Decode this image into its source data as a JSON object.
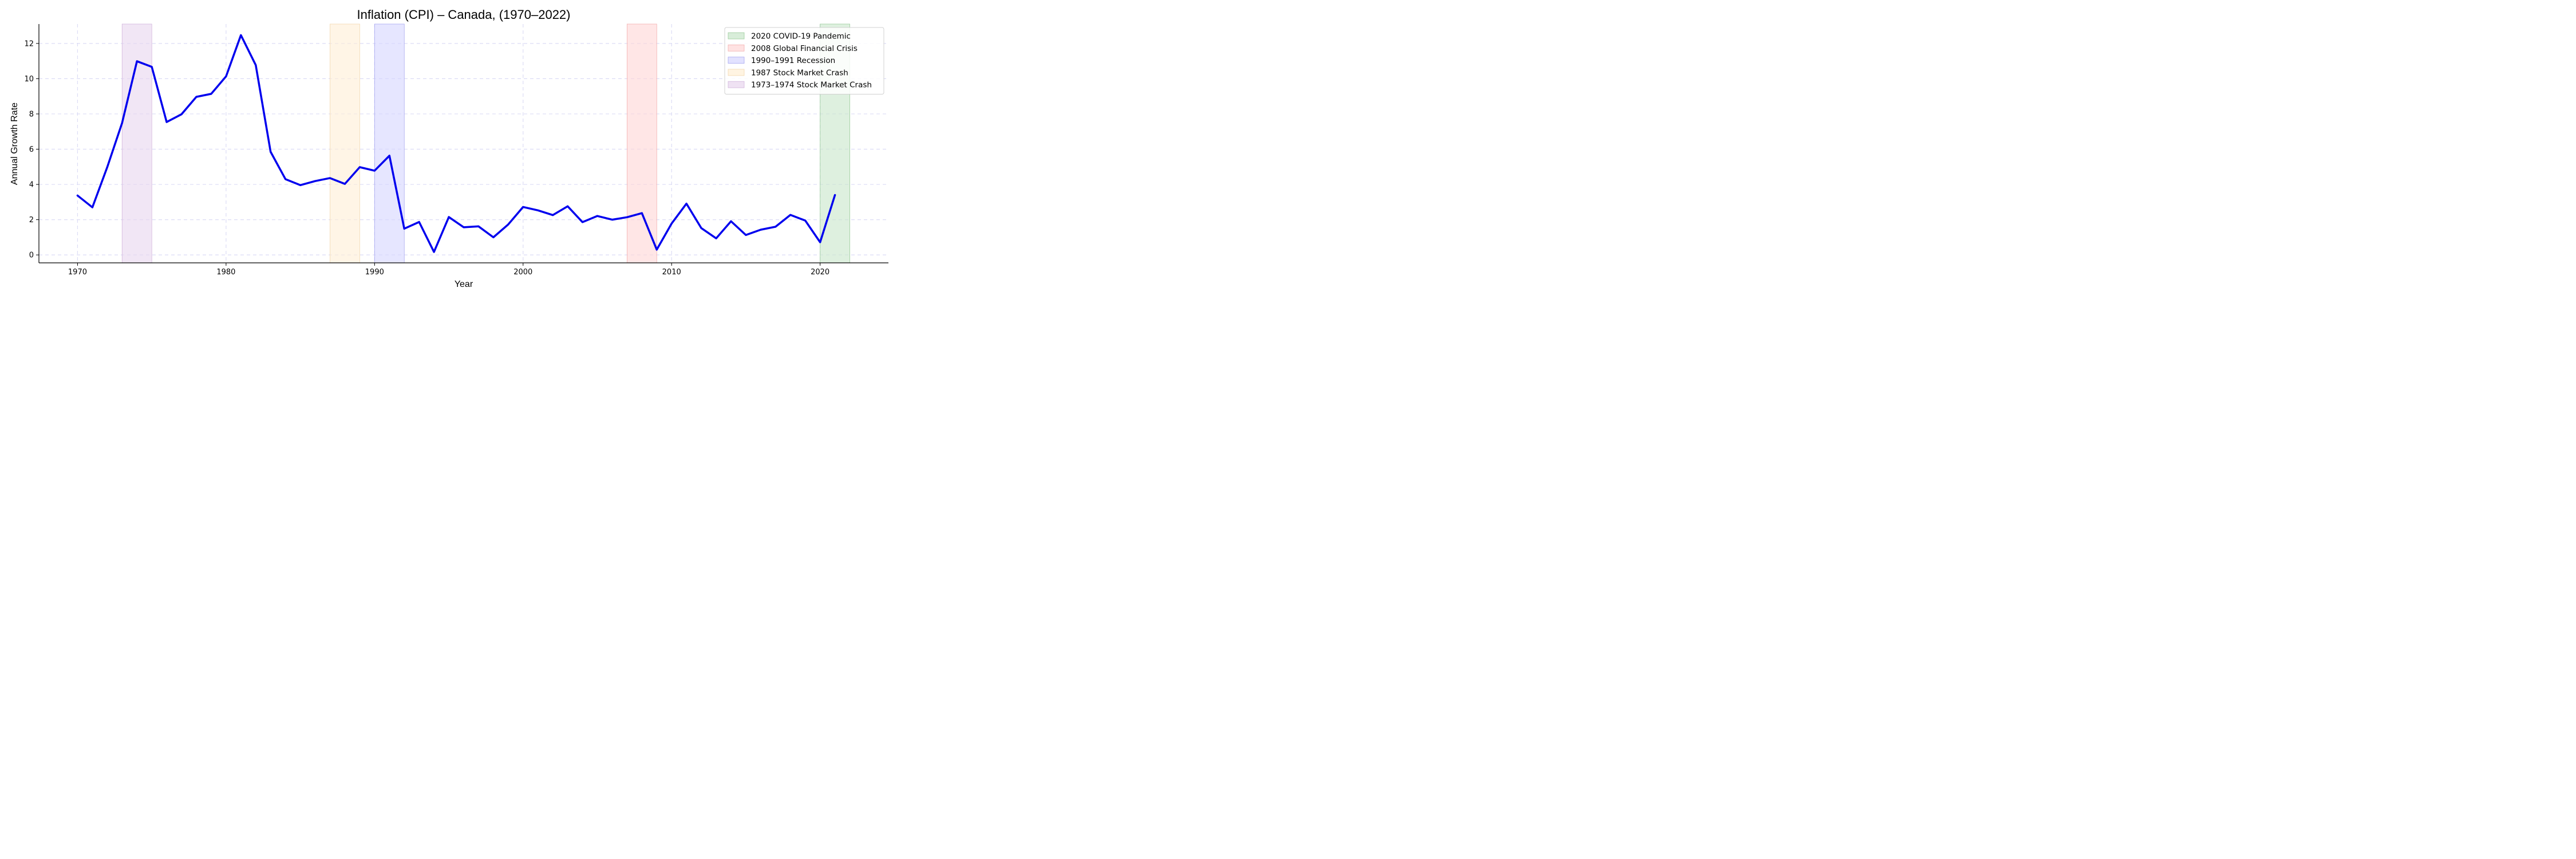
{
  "chart_data": {
    "type": "line",
    "title": "Inflation (CPI) – Canada, (1970–2022)",
    "xlabel": "Year",
    "ylabel": "Annual Growth Rate",
    "xlim": [
      1967.4,
      2024.6
    ],
    "ylim": [
      -0.45,
      13.1
    ],
    "x_ticks": [
      1970,
      1980,
      1990,
      2000,
      2010,
      2020
    ],
    "y_ticks": [
      0,
      2,
      4,
      6,
      8,
      10,
      12
    ],
    "grid": true,
    "legend_position": "top-right",
    "series": [
      {
        "color": "#0000ee",
        "x": [
          1970,
          1971,
          1972,
          1973,
          1974,
          1975,
          1976,
          1977,
          1978,
          1979,
          1980,
          1981,
          1982,
          1983,
          1984,
          1985,
          1986,
          1987,
          1988,
          1989,
          1990,
          1991,
          1992,
          1993,
          1994,
          1995,
          1996,
          1997,
          1998,
          1999,
          2000,
          2001,
          2002,
          2003,
          2004,
          2005,
          2006,
          2007,
          2008,
          2009,
          2010,
          2011,
          2012,
          2013,
          2014,
          2015,
          2016,
          2017,
          2018,
          2019,
          2020,
          2021
        ],
        "values": [
          3.37,
          2.7,
          4.98,
          7.49,
          10.99,
          10.67,
          7.54,
          7.98,
          8.97,
          9.14,
          10.13,
          12.47,
          10.77,
          5.85,
          4.3,
          3.96,
          4.19,
          4.36,
          4.03,
          4.98,
          4.78,
          5.63,
          1.49,
          1.87,
          0.17,
          2.15,
          1.57,
          1.62,
          1.0,
          1.73,
          2.72,
          2.53,
          2.26,
          2.76,
          1.86,
          2.21,
          2.0,
          2.14,
          2.37,
          0.3,
          1.78,
          2.91,
          1.52,
          0.94,
          1.91,
          1.13,
          1.43,
          1.6,
          2.27,
          1.95,
          0.72,
          3.4
        ]
      }
    ],
    "shaded_regions": [
      {
        "label": "2020 COVID-19 Pandemic",
        "start": 2020,
        "end": 2022,
        "color": "#c8e6c9",
        "edge": "#9ccc9c"
      },
      {
        "label": "2008 Global Financial Crisis",
        "start": 2007,
        "end": 2009,
        "color": "#ffd6d6",
        "edge": "#f2b0b0"
      },
      {
        "label": "1990–1991 Recession",
        "start": 1990,
        "end": 1992,
        "color": "#d5d5ff",
        "edge": "#a8a8f0"
      },
      {
        "label": "1987 Stock Market Crash",
        "start": 1987,
        "end": 1989,
        "color": "#ffefd6",
        "edge": "#f2d8b0"
      },
      {
        "label": "1973–1974 Stock Market Crash",
        "start": 1973,
        "end": 1975,
        "color": "#e8d6ee",
        "edge": "#d2b6dc"
      }
    ]
  }
}
